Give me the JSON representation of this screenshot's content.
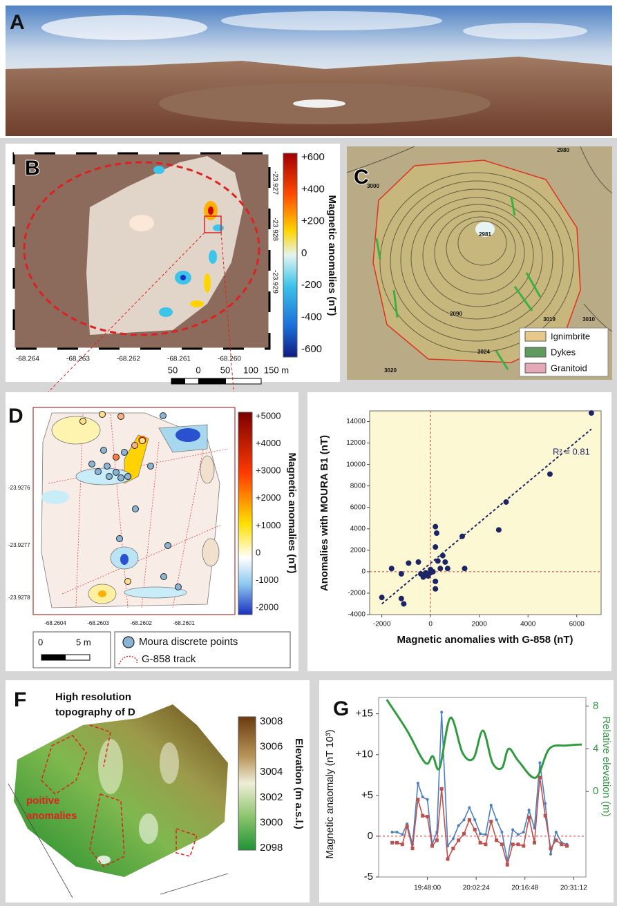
{
  "panel_a": {
    "label": "A"
  },
  "panel_b": {
    "label": "B",
    "colorbar": {
      "title": "Magnetic anomalies (nT)",
      "ticks": [
        "+600",
        "+400",
        "+200",
        "0",
        "-200",
        "-400",
        "-600"
      ]
    },
    "lat_labels": [
      "-23.927",
      "-23.928",
      "-23.929"
    ],
    "lon_labels": [
      "-68.264",
      "-68.263",
      "-68.262",
      "-68.261",
      "-68.260"
    ],
    "scale_labels": [
      "50",
      "0",
      "50",
      "100",
      "150 m"
    ]
  },
  "panel_c": {
    "label": "C",
    "contour_labels": [
      "3000",
      "2980",
      "2981",
      "2090",
      "3019",
      "3010",
      "3024",
      "3020"
    ],
    "legend": [
      "Ignimbrite",
      "Dykes",
      "Granitoid"
    ]
  },
  "panel_d": {
    "label": "D",
    "colorbar": {
      "title": "Magnetic anomalies (nT)",
      "ticks": [
        "+5000",
        "+4000",
        "+3000",
        "+2000",
        "+1000",
        "0",
        "-1000",
        "-2000"
      ]
    },
    "lat_labels": [
      "-23.9276",
      "-23.9277",
      "-23.9278"
    ],
    "lon_labels": [
      "-68.2604",
      "-68.2603",
      "-68.2602",
      "-68.2601"
    ],
    "scale_labels": [
      "0",
      "5 m"
    ],
    "legend": [
      "Moura discrete points",
      "G-858 track"
    ]
  },
  "panel_f": {
    "label": "F",
    "title": [
      "High resolution",
      "topography of D"
    ],
    "annotation": [
      "poitive",
      "anomalies"
    ],
    "colorbar": {
      "title": "Elevation (m a.s.l.)",
      "ticks": [
        "3008",
        "3006",
        "3004",
        "3002",
        "3000",
        "2098"
      ]
    }
  },
  "chart_data": [
    {
      "type": "scatter",
      "x_label": "Magnetic anomalies with G-858 (nT)",
      "y_label": "Anomalies  with MOURA B1 (nT)",
      "annotation": "R² = 0.81",
      "color": "#1c2466",
      "x": [
        6600,
        4900,
        3100,
        2800,
        1300,
        1400,
        -2000,
        -1200,
        -1100,
        -1600,
        -1200,
        -900,
        -500,
        -400,
        -200,
        -100,
        0,
        100,
        200,
        250,
        200,
        300,
        500,
        600,
        700,
        400,
        200,
        200,
        -300,
        0
      ],
      "values": [
        14800,
        9100,
        6500,
        3900,
        3300,
        300,
        -2400,
        -2500,
        -3000,
        300,
        -200,
        800,
        900,
        -200,
        -100,
        -400,
        -100,
        0,
        4200,
        3600,
        2300,
        1000,
        1500,
        900,
        300,
        300,
        -900,
        -1600,
        -500,
        200
      ],
      "trendline": {
        "x": [
          -2000,
          6600
        ],
        "y": [
          -3000,
          13300
        ]
      },
      "xlim": [
        -2500,
        7000
      ],
      "ylim": [
        -4000,
        15000
      ],
      "xticks": [
        -2000,
        0,
        2000,
        4000,
        6000
      ],
      "yticks": [
        -4000,
        -2000,
        0,
        2000,
        4000,
        6000,
        8000,
        10000,
        12000,
        14000
      ]
    },
    {
      "type": "line",
      "label": "G",
      "y_label": "Magnetic anaomaly (nT 10³)",
      "y2_label": "Relative elevation (m)",
      "x": [
        "19:37:36",
        "19:39:00",
        "19:40:36",
        "19:42:00",
        "19:43:36",
        "19:45:12",
        "19:46:36",
        "19:48:00",
        "19:49:24",
        "19:50:48",
        "19:52:12",
        "19:54:00",
        "19:55:36",
        "19:57:12",
        "19:58:48",
        "20:00:24",
        "20:02:00",
        "20:03:36",
        "20:05:12",
        "20:06:48",
        "20:08:24",
        "20:10:00",
        "20:11:36",
        "20:13:12",
        "20:14:48",
        "20:16:24",
        "20:18:00",
        "20:19:36",
        "20:21:12",
        "20:22:48",
        "20:24:24",
        "20:26:00",
        "20:27:36",
        "20:29:12"
      ],
      "series": [
        {
          "color": "#4a7fc1",
          "values": [
            0.5,
            0.5,
            0.2,
            1.5,
            -1.0,
            6.5,
            4.8,
            4.5,
            -1.0,
            0.5,
            15.2,
            -1.2,
            -0.3,
            1.3,
            2.0,
            3.5,
            2.0,
            0.3,
            0.2,
            3.8,
            2.0,
            0.5,
            -3.0,
            0.8,
            0.2,
            0.5,
            3.2,
            1.0,
            9.0,
            4.0,
            -2.2,
            0.5,
            -0.8,
            -1.0
          ]
        },
        {
          "color": "#c0504d",
          "values": [
            -0.8,
            -0.8,
            -1.0,
            1.2,
            -1.5,
            4.5,
            2.5,
            2.4,
            -1.2,
            -0.5,
            5.8,
            -2.8,
            -1.5,
            -0.5,
            0.3,
            2.0,
            0.8,
            -0.8,
            -1.0,
            1.8,
            -0.5,
            -1.0,
            -3.5,
            -1.0,
            -1.0,
            -1.2,
            2.3,
            -0.8,
            7.2,
            2.5,
            -1.5,
            -0.5,
            -1.0,
            -1.2
          ]
        },
        {
          "color": "#2e9b3e",
          "axis": "y2",
          "x": [
            "19:36:00",
            "19:42:00",
            "19:46:00",
            "19:48:00",
            "19:49:36",
            "19:51:36",
            "19:54:48",
            "19:58:24",
            "20:01:36",
            "20:04:24",
            "20:07:12",
            "20:10:00",
            "20:12:00",
            "20:15:00",
            "20:20:00",
            "20:24:00",
            "20:29:00",
            "20:33:36"
          ],
          "values": [
            8.6,
            5.7,
            3.3,
            2.6,
            3.3,
            2.2,
            6.9,
            3.6,
            3.1,
            5.7,
            2.7,
            2.2,
            4.0,
            2.8,
            1.3,
            4.0,
            4.3,
            4.4
          ]
        }
      ],
      "xlim": [
        "19:33:36",
        "20:34:48"
      ],
      "xticks": [
        "19:48:00",
        "20:02:24",
        "20:16:48",
        "20:31:12"
      ],
      "ylim": [
        -5,
        17
      ],
      "yticks": [
        {
          "value": 15,
          "label": "+15"
        },
        {
          "value": 10,
          "label": "+10"
        },
        {
          "value": 5,
          "label": "+5"
        },
        0,
        -5
      ],
      "y2lim": [
        -8,
        8.8
      ],
      "y2ticks": [
        8,
        4,
        0
      ]
    }
  ]
}
